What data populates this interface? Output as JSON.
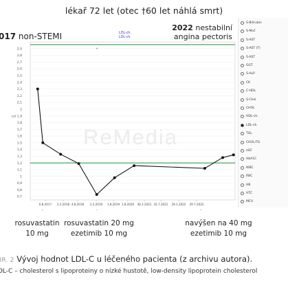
{
  "header": {
    "title": "lékař 72 let (otec †60 let náhlá smrt)",
    "left_year": "017",
    "left_event": "non-STEMI",
    "right_year": "2022",
    "right_event_line1": "nestabilní",
    "right_event_line2": "angina pectoris"
  },
  "chart_data": {
    "type": "line",
    "title": "",
    "legend": [
      "LDL-ch.",
      "LDL-ch."
    ],
    "ylabel": "cel 1,9",
    "xlabel": "",
    "ylim": [
      0.65,
      3.0
    ],
    "grid": true,
    "reference_lines": [
      {
        "value": 2.96,
        "color": "#2e9e48"
      },
      {
        "value": 1.2,
        "color": "#2e9e48"
      }
    ],
    "yticks": [
      {
        "value": 2.9,
        "label": "2,9"
      },
      {
        "value": 2.8,
        "label": "2,8"
      },
      {
        "value": 2.7,
        "label": "2,7"
      },
      {
        "value": 2.6,
        "label": "2,6"
      },
      {
        "value": 2.5,
        "label": "2,5"
      },
      {
        "value": 2.4,
        "label": "2,4"
      },
      {
        "value": 2.3,
        "label": "2,3"
      },
      {
        "value": 2.2,
        "label": "2,2"
      },
      {
        "value": 2.1,
        "label": "2,1"
      },
      {
        "value": 2.0,
        "label": "2"
      },
      {
        "value": 1.9,
        "label": "cel 1,9"
      },
      {
        "value": 1.8,
        "label": "1,8"
      },
      {
        "value": 1.7,
        "label": "1,7"
      },
      {
        "value": 1.6,
        "label": "1,6"
      },
      {
        "value": 1.5,
        "label": "1,5"
      },
      {
        "value": 1.4,
        "label": "1,4"
      },
      {
        "value": 1.3,
        "label": "1,3"
      },
      {
        "value": 1.2,
        "label": "1,2"
      },
      {
        "value": 1.1,
        "label": "1,1"
      },
      {
        "value": 1.0,
        "label": "1"
      },
      {
        "value": 0.9,
        "label": "0,9"
      },
      {
        "value": 0.8,
        "label": "0,8"
      },
      {
        "value": 0.7,
        "label": "0,7"
      }
    ],
    "x_labels": [
      "6.8.2017",
      "2.2.2018",
      "4.8.2018",
      "2.2.2019",
      "1.8.2019",
      "1.8.2020",
      "30.1.2021",
      "31.7.2021",
      "29.1.2022",
      "29.7.2022"
    ],
    "series": [
      {
        "name": "LDL-ch.",
        "color": "#111111",
        "points": [
          {
            "date": "2017-06",
            "value": 2.3
          },
          {
            "date": "2017-08-06",
            "value": 1.5
          },
          {
            "date": "2018-02-02",
            "value": 1.33
          },
          {
            "date": "2018-08-04",
            "value": 1.19
          },
          {
            "date": "2019-02-02",
            "value": 0.73
          },
          {
            "date": "2019-08-01",
            "value": 0.98
          },
          {
            "date": "2020-02",
            "value": 1.16
          },
          {
            "date": "2022-01-29",
            "value": 1.12
          },
          {
            "date": "2022-07-29",
            "value": 1.28
          },
          {
            "date": "2022-11",
            "value": 1.32
          }
        ]
      }
    ]
  },
  "parameters": [
    {
      "label": "S-Bilirubin",
      "selected": false
    },
    {
      "label": "S-Moč",
      "selected": false
    },
    {
      "label": "S-AST",
      "selected": false
    },
    {
      "label": "S-AST (T)",
      "selected": false
    },
    {
      "label": "S-AST",
      "selected": false
    },
    {
      "label": "GGT",
      "selected": false
    },
    {
      "label": "S-ALP",
      "selected": false
    },
    {
      "label": "CK",
      "selected": false
    },
    {
      "label": "C-HDL",
      "selected": false
    },
    {
      "label": "S-Chol",
      "selected": false
    },
    {
      "label": "CHOL",
      "selected": false
    },
    {
      "label": "HDL-ch.",
      "selected": false
    },
    {
      "label": "LDL-ch.",
      "selected": true
    },
    {
      "label": "TGL",
      "selected": false
    },
    {
      "label": "CHOL/TG",
      "selected": false
    },
    {
      "label": "eGF",
      "selected": false
    },
    {
      "label": "HbA1C",
      "selected": false
    },
    {
      "label": "WBC",
      "selected": false
    },
    {
      "label": "RBC",
      "selected": false
    },
    {
      "label": "HB",
      "selected": false
    },
    {
      "label": "HTC",
      "selected": false
    },
    {
      "label": "MCV",
      "selected": false
    }
  ],
  "annotations": [
    {
      "line1": "rosuvastatin",
      "line2": "10 mg",
      "arrow_color": "#111111"
    },
    {
      "line1": "rosuvastatin 20 mg",
      "line2": "ezetimib 10 mg",
      "arrow_color": "#d42020"
    },
    {
      "line1": "navýšen na 40 mg",
      "line2": "ezetimib 10 mg",
      "arrow_color": "#111111"
    }
  ],
  "watermark": "ReMedia",
  "caption": {
    "figure": "BR. 2",
    "text": "Vývoj hodnot LDL-C u léčeného pacienta (z archivu autora)."
  },
  "footnote": "DL-C – cholesterol s lipoproteiny o nízké hustotě, low-density lipoprotein cholesterol"
}
